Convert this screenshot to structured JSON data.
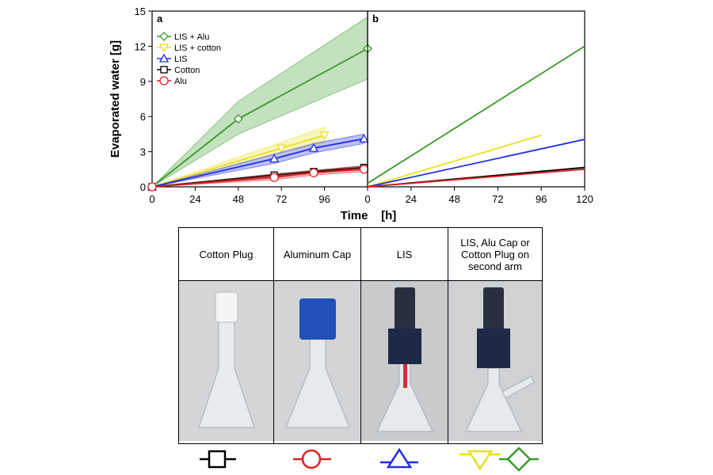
{
  "chart_data": [
    {
      "type": "line",
      "panel_label": "a",
      "ylabel": "Evaporated water   [g]",
      "xlim": [
        0,
        120
      ],
      "ylim": [
        0,
        15
      ],
      "xticks": [
        0,
        24,
        48,
        72,
        96
      ],
      "yticks": [
        0,
        3,
        6,
        9,
        12,
        15
      ],
      "legend": "upper left",
      "series": [
        {
          "name": "LIS + Alu",
          "color": "#3a9a2a",
          "marker": "diamond",
          "x": [
            0,
            48,
            120
          ],
          "values": [
            0,
            5.8,
            11.8
          ],
          "lower": [
            0,
            4.5,
            9.2
          ],
          "upper": [
            0,
            7.3,
            14.5
          ]
        },
        {
          "name": "LIS + cotton",
          "color": "#e8e020",
          "marker": "triangle-down",
          "x": [
            0,
            72,
            96
          ],
          "values": [
            0,
            3.3,
            4.4
          ],
          "lower": [
            0,
            2.9,
            3.8
          ],
          "upper": [
            0,
            3.8,
            5.1
          ]
        },
        {
          "name": "LIS",
          "color": "#2030e0",
          "marker": "triangle",
          "x": [
            0,
            68,
            90,
            118
          ],
          "values": [
            0,
            2.4,
            3.3,
            4.1
          ],
          "lower": [
            0,
            2.0,
            2.9,
            3.7
          ],
          "upper": [
            0,
            2.8,
            3.7,
            4.5
          ]
        },
        {
          "name": "Cotton",
          "color": "#000000",
          "marker": "square",
          "x": [
            0,
            68,
            90,
            118
          ],
          "values": [
            0,
            1.0,
            1.3,
            1.65
          ],
          "lower": [
            0,
            0.9,
            1.2,
            1.5
          ],
          "upper": [
            0,
            1.1,
            1.4,
            1.8
          ]
        },
        {
          "name": "Alu",
          "color": "#e02020",
          "marker": "circle",
          "x": [
            0,
            68,
            90,
            118
          ],
          "values": [
            0,
            0.8,
            1.2,
            1.5
          ],
          "lower": [
            0,
            0.6,
            1.0,
            1.3
          ],
          "upper": [
            0,
            1.0,
            1.4,
            1.7
          ]
        }
      ]
    },
    {
      "type": "line",
      "panel_label": "b",
      "xlabel": "Time    [h]",
      "xlim": [
        0,
        120
      ],
      "ylim": [
        0,
        15
      ],
      "xticks": [
        0,
        24,
        48,
        72,
        96,
        120
      ],
      "series": [
        {
          "color": "#3a9a2a",
          "x": [
            0,
            120
          ],
          "values": [
            0.3,
            12
          ]
        },
        {
          "color": "#e8e020",
          "x": [
            0,
            96
          ],
          "values": [
            0,
            4.4
          ]
        },
        {
          "color": "#2030e0",
          "x": [
            0,
            120
          ],
          "values": [
            0,
            4.05
          ]
        },
        {
          "color": "#000000",
          "x": [
            0,
            120
          ],
          "values": [
            0,
            1.65
          ]
        },
        {
          "color": "#e02020",
          "x": [
            0,
            120
          ],
          "values": [
            0,
            1.5
          ]
        }
      ]
    }
  ],
  "table": {
    "headers": [
      "Cotton Plug",
      "Aluminum Cap",
      "LIS",
      "LIS, Alu Cap or Cotton Plug on second arm"
    ]
  }
}
